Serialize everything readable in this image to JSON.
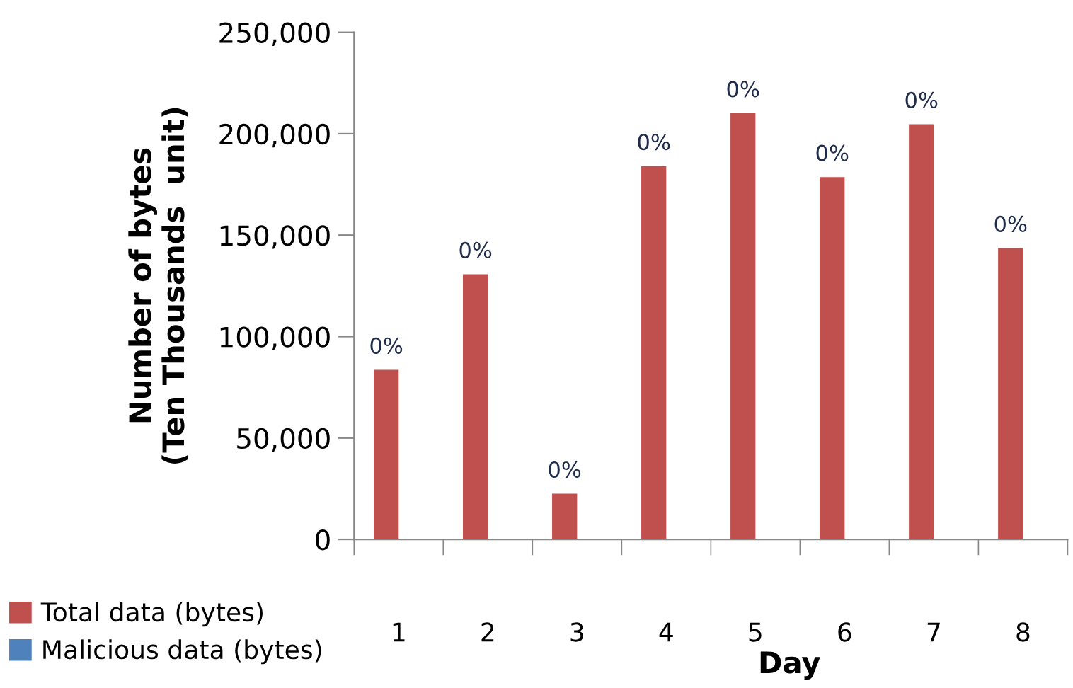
{
  "chart_data": {
    "type": "bar",
    "xlabel": "Day",
    "ylabel": "Number of bytes\n(Ten Thousands  unit)",
    "categories": [
      "1",
      "2",
      "3",
      "4",
      "5",
      "6",
      "7",
      "8"
    ],
    "series": [
      {
        "name": "Total data (bytes)",
        "color": "#c0504d",
        "values": [
          83600,
          130700,
          22500,
          184000,
          210100,
          178600,
          204700,
          143600
        ]
      },
      {
        "name": "Malicious data (bytes)",
        "color": "#4f81bd",
        "values": [
          0,
          0,
          0,
          0,
          0,
          0,
          0,
          0
        ]
      }
    ],
    "ylim": [
      0,
      250000
    ],
    "yticks": [
      0,
      {
        "value": 50000,
        "label": "50,000"
      },
      {
        "value": 100000,
        "label": "100,000"
      },
      {
        "value": 150000,
        "label": "150,000"
      },
      {
        "value": 200000,
        "label": "200,000"
      },
      {
        "value": 250000,
        "label": "250,000"
      }
    ],
    "annotations": [
      {
        "text": "0%",
        "x": "1",
        "y": 83600
      },
      {
        "text": "0%",
        "x": "2",
        "y": 130700
      },
      {
        "text": "0%",
        "x": "3",
        "y": 22500
      },
      {
        "text": "0%",
        "x": "4",
        "y": 184000
      },
      {
        "text": "0%",
        "x": "5",
        "y": 210100
      },
      {
        "text": "0%",
        "x": "6",
        "y": 178600
      },
      {
        "text": "0%",
        "x": "7",
        "y": 204700
      },
      {
        "text": "0%",
        "x": "8",
        "y": 143600
      }
    ],
    "grid": false,
    "legend": "bottom left"
  }
}
